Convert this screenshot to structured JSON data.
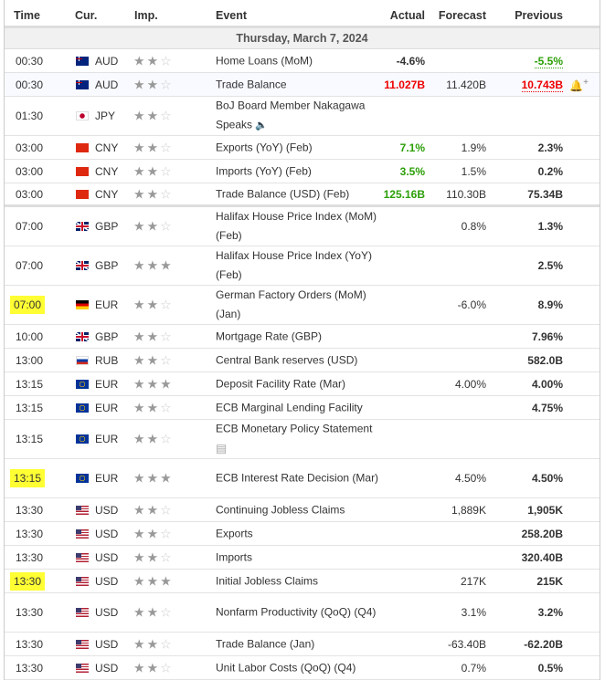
{
  "header": {
    "time": "Time",
    "cur": "Cur.",
    "imp": "Imp.",
    "event": "Event",
    "actual": "Actual",
    "forecast": "Forecast",
    "previous": "Previous"
  },
  "date": "Thursday, March 7, 2024",
  "colors": {
    "highlight": "#ffff33",
    "negative": "#e00000",
    "positive": "#2b9f07"
  },
  "rows": [
    {
      "time": "00:30",
      "flag": "au",
      "cur": "AUD",
      "stars": 2,
      "event": "Home Loans (MoM)",
      "actual": "-4.6%",
      "forecast": "",
      "previous": "-5.5%",
      "prev_color": "green"
    },
    {
      "time": "00:30",
      "flag": "au",
      "cur": "AUD",
      "stars": 2,
      "event": "Trade Balance",
      "actual": "11.027B",
      "actual_color": "red",
      "forecast": "11.420B",
      "previous": "10.743B",
      "prev_color": "red",
      "bell": true
    },
    {
      "time": "01:30",
      "flag": "jp",
      "cur": "JPY",
      "stars": 2,
      "event": "BoJ Board Member Nakagawa Speaks",
      "icon": "speaker",
      "actual": "",
      "forecast": "",
      "previous": "",
      "dbl": true
    },
    {
      "time": "03:00",
      "flag": "cn",
      "cur": "CNY",
      "stars": 2,
      "event": "Exports (YoY) (Feb)",
      "actual": "7.1%",
      "actual_color": "green",
      "forecast": "1.9%",
      "previous": "2.3%"
    },
    {
      "time": "03:00",
      "flag": "cn",
      "cur": "CNY",
      "stars": 2,
      "event": "Imports (YoY) (Feb)",
      "actual": "3.5%",
      "actual_color": "green",
      "forecast": "1.5%",
      "previous": "0.2%"
    },
    {
      "time": "03:00",
      "flag": "cn",
      "cur": "CNY",
      "stars": 2,
      "event": "Trade Balance (USD) (Feb)",
      "actual": "125.16B",
      "actual_color": "green",
      "forecast": "110.30B",
      "previous": "75.34B",
      "sep": true
    },
    {
      "time": "07:00",
      "flag": "gb",
      "cur": "GBP",
      "stars": 2,
      "event": "Halifax House Price Index (MoM) (Feb)",
      "actual": "",
      "forecast": "0.8%",
      "previous": "1.3%",
      "dbl": true
    },
    {
      "time": "07:00",
      "flag": "gb",
      "cur": "GBP",
      "stars": 3,
      "event": "Halifax House Price Index (YoY) (Feb)",
      "actual": "",
      "forecast": "",
      "previous": "2.5%",
      "dbl": true
    },
    {
      "time": "07:00",
      "flag": "de",
      "cur": "EUR",
      "stars": 2,
      "event": "German Factory Orders (MoM) (Jan)",
      "actual": "",
      "forecast": "-6.0%",
      "previous": "8.9%",
      "dbl": true,
      "hl": true
    },
    {
      "time": "10:00",
      "flag": "gb",
      "cur": "GBP",
      "stars": 2,
      "event": "Mortgage Rate (GBP)",
      "actual": "",
      "forecast": "",
      "previous": "7.96%"
    },
    {
      "time": "13:00",
      "flag": "ru",
      "cur": "RUB",
      "stars": 2,
      "event": "Central Bank reserves (USD)",
      "actual": "",
      "forecast": "",
      "previous": "582.0B"
    },
    {
      "time": "13:15",
      "flag": "eu",
      "cur": "EUR",
      "stars": 3,
      "event": "Deposit Facility Rate (Mar)",
      "actual": "",
      "forecast": "4.00%",
      "previous": "4.00%"
    },
    {
      "time": "13:15",
      "flag": "eu",
      "cur": "EUR",
      "stars": 2,
      "event": "ECB Marginal Lending Facility",
      "actual": "",
      "forecast": "",
      "previous": "4.75%"
    },
    {
      "time": "13:15",
      "flag": "eu",
      "cur": "EUR",
      "stars": 2,
      "event": "ECB Monetary Policy Statement",
      "icon": "document",
      "actual": "",
      "forecast": "",
      "previous": "",
      "dbl": true
    },
    {
      "time": "13:15",
      "flag": "eu",
      "cur": "EUR",
      "stars": 3,
      "event": "ECB Interest Rate Decision (Mar)",
      "actual": "",
      "forecast": "4.50%",
      "previous": "4.50%",
      "dbl": true,
      "hl": true
    },
    {
      "time": "13:30",
      "flag": "us",
      "cur": "USD",
      "stars": 2,
      "event": "Continuing Jobless Claims",
      "actual": "",
      "forecast": "1,889K",
      "previous": "1,905K"
    },
    {
      "time": "13:30",
      "flag": "us",
      "cur": "USD",
      "stars": 2,
      "event": "Exports",
      "actual": "",
      "forecast": "",
      "previous": "258.20B"
    },
    {
      "time": "13:30",
      "flag": "us",
      "cur": "USD",
      "stars": 2,
      "event": "Imports",
      "actual": "",
      "forecast": "",
      "previous": "320.40B"
    },
    {
      "time": "13:30",
      "flag": "us",
      "cur": "USD",
      "stars": 3,
      "event": "Initial Jobless Claims",
      "actual": "",
      "forecast": "217K",
      "previous": "215K",
      "hl": true
    },
    {
      "time": "13:30",
      "flag": "us",
      "cur": "USD",
      "stars": 2,
      "event": "Nonfarm Productivity (QoQ) (Q4)",
      "actual": "",
      "forecast": "3.1%",
      "previous": "3.2%",
      "dbl": true
    },
    {
      "time": "13:30",
      "flag": "us",
      "cur": "USD",
      "stars": 2,
      "event": "Trade Balance (Jan)",
      "actual": "",
      "forecast": "-63.40B",
      "previous": "-62.20B"
    },
    {
      "time": "13:30",
      "flag": "us",
      "cur": "USD",
      "stars": 2,
      "event": "Unit Labor Costs (QoQ) (Q4)",
      "actual": "",
      "forecast": "0.7%",
      "previous": "0.5%"
    }
  ]
}
